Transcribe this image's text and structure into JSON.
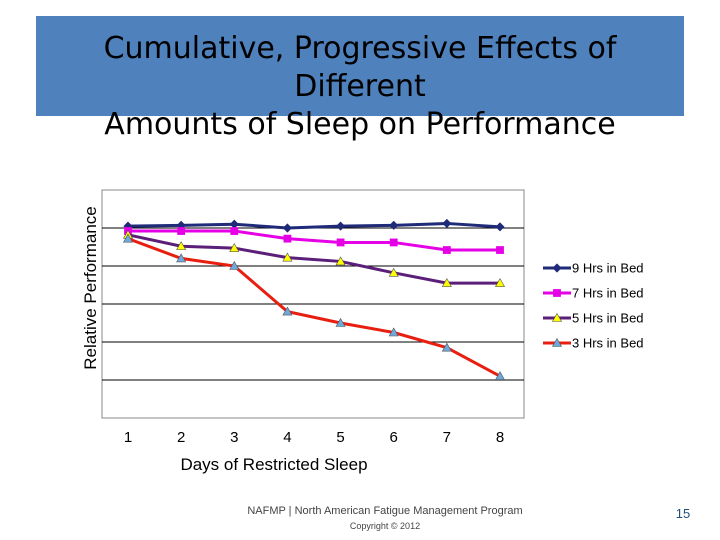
{
  "slide": {
    "title_line1": "Cumulative, Progressive Effects of Different",
    "title_line2": "Amounts of Sleep on Performance",
    "title_bg_color": "#4f81bd",
    "footer_line1": "NAFMP  |  North American Fatigue Management Program",
    "footer_line2": "Copyright © 2012",
    "page_number": "15"
  },
  "chart_data": {
    "type": "line",
    "title": "",
    "xlabel": "Days of Restricted Sleep",
    "ylabel": "Relative Performance",
    "x": [
      1,
      2,
      3,
      4,
      5,
      6,
      7,
      8
    ],
    "xlim": [
      0.5,
      8.5
    ],
    "ylim": [
      0,
      6
    ],
    "grid": true,
    "legend_position": "right",
    "series": [
      {
        "name": "9 Hrs in Bed",
        "color": "#1f2a78",
        "marker": "diamond",
        "values": [
          5.05,
          5.07,
          5.1,
          5.0,
          5.05,
          5.07,
          5.12,
          5.03
        ]
      },
      {
        "name": "7 Hrs in Bed",
        "color": "#e600e6",
        "marker": "square",
        "values": [
          4.92,
          4.92,
          4.92,
          4.72,
          4.62,
          4.62,
          4.42,
          4.42
        ]
      },
      {
        "name": "5 Hrs in Bed",
        "color": "#5b1f7a",
        "marker": "triangle",
        "marker_color": "#ffff00",
        "values": [
          4.82,
          4.52,
          4.47,
          4.22,
          4.12,
          3.82,
          3.55,
          3.55
        ]
      },
      {
        "name": "3 Hrs in Bed",
        "color": "#e81e10",
        "marker": "triangle",
        "marker_color": "#6fa8dc",
        "values": [
          4.72,
          4.2,
          4.0,
          2.8,
          2.5,
          2.25,
          1.85,
          1.1
        ]
      }
    ]
  }
}
